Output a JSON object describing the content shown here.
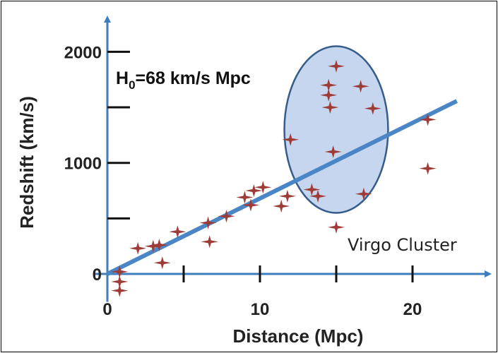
{
  "chart_data": {
    "type": "scatter",
    "title": "",
    "xlabel": "Distance (Mpc)",
    "ylabel": "Redshift (km/s)",
    "xlim": [
      0,
      25
    ],
    "ylim": [
      -200,
      2300
    ],
    "xticks": [
      0,
      10,
      20
    ],
    "xtick_minor": [
      5,
      15
    ],
    "yticks": [
      0,
      1000,
      2000
    ],
    "ytick_minor": [
      500,
      1500
    ],
    "hubble_label": {
      "prefix": "H",
      "subscript": "0",
      "suffix": "=68 km/s Mpc"
    },
    "cluster_label": "Virgo Cluster",
    "fit_line": {
      "slope": 68,
      "x_start": 0,
      "x_end": 22.9
    },
    "cluster_ellipse": {
      "cx": 15,
      "cy": 1300,
      "rx": 3.4,
      "ry": 750
    },
    "colors": {
      "axis": "#3f7ebd",
      "fit_line": "#4a86c5",
      "ellipse_fill": "#c6d6ee",
      "ellipse_stroke": "#355c8a",
      "marker": "#9e3b37"
    },
    "points": [
      {
        "x": 0.8,
        "y": 20
      },
      {
        "x": 0.8,
        "y": -70
      },
      {
        "x": 0.8,
        "y": -150
      },
      {
        "x": 2.0,
        "y": 230
      },
      {
        "x": 3.0,
        "y": 250
      },
      {
        "x": 3.4,
        "y": 260
      },
      {
        "x": 3.6,
        "y": 100
      },
      {
        "x": 4.6,
        "y": 380
      },
      {
        "x": 6.6,
        "y": 460
      },
      {
        "x": 6.7,
        "y": 290
      },
      {
        "x": 7.8,
        "y": 520
      },
      {
        "x": 9.0,
        "y": 690
      },
      {
        "x": 9.4,
        "y": 620
      },
      {
        "x": 9.6,
        "y": 750
      },
      {
        "x": 10.2,
        "y": 780
      },
      {
        "x": 11.4,
        "y": 610
      },
      {
        "x": 11.8,
        "y": 700
      },
      {
        "x": 12.0,
        "y": 1210
      },
      {
        "x": 13.4,
        "y": 760
      },
      {
        "x": 13.8,
        "y": 700
      },
      {
        "x": 14.5,
        "y": 1700
      },
      {
        "x": 14.5,
        "y": 1610
      },
      {
        "x": 14.6,
        "y": 1500
      },
      {
        "x": 14.8,
        "y": 1100
      },
      {
        "x": 15.0,
        "y": 1870
      },
      {
        "x": 15.0,
        "y": 420
      },
      {
        "x": 16.6,
        "y": 1690
      },
      {
        "x": 16.8,
        "y": 720
      },
      {
        "x": 17.4,
        "y": 1490
      },
      {
        "x": 21.0,
        "y": 1390
      },
      {
        "x": 21.0,
        "y": 950
      }
    ]
  }
}
